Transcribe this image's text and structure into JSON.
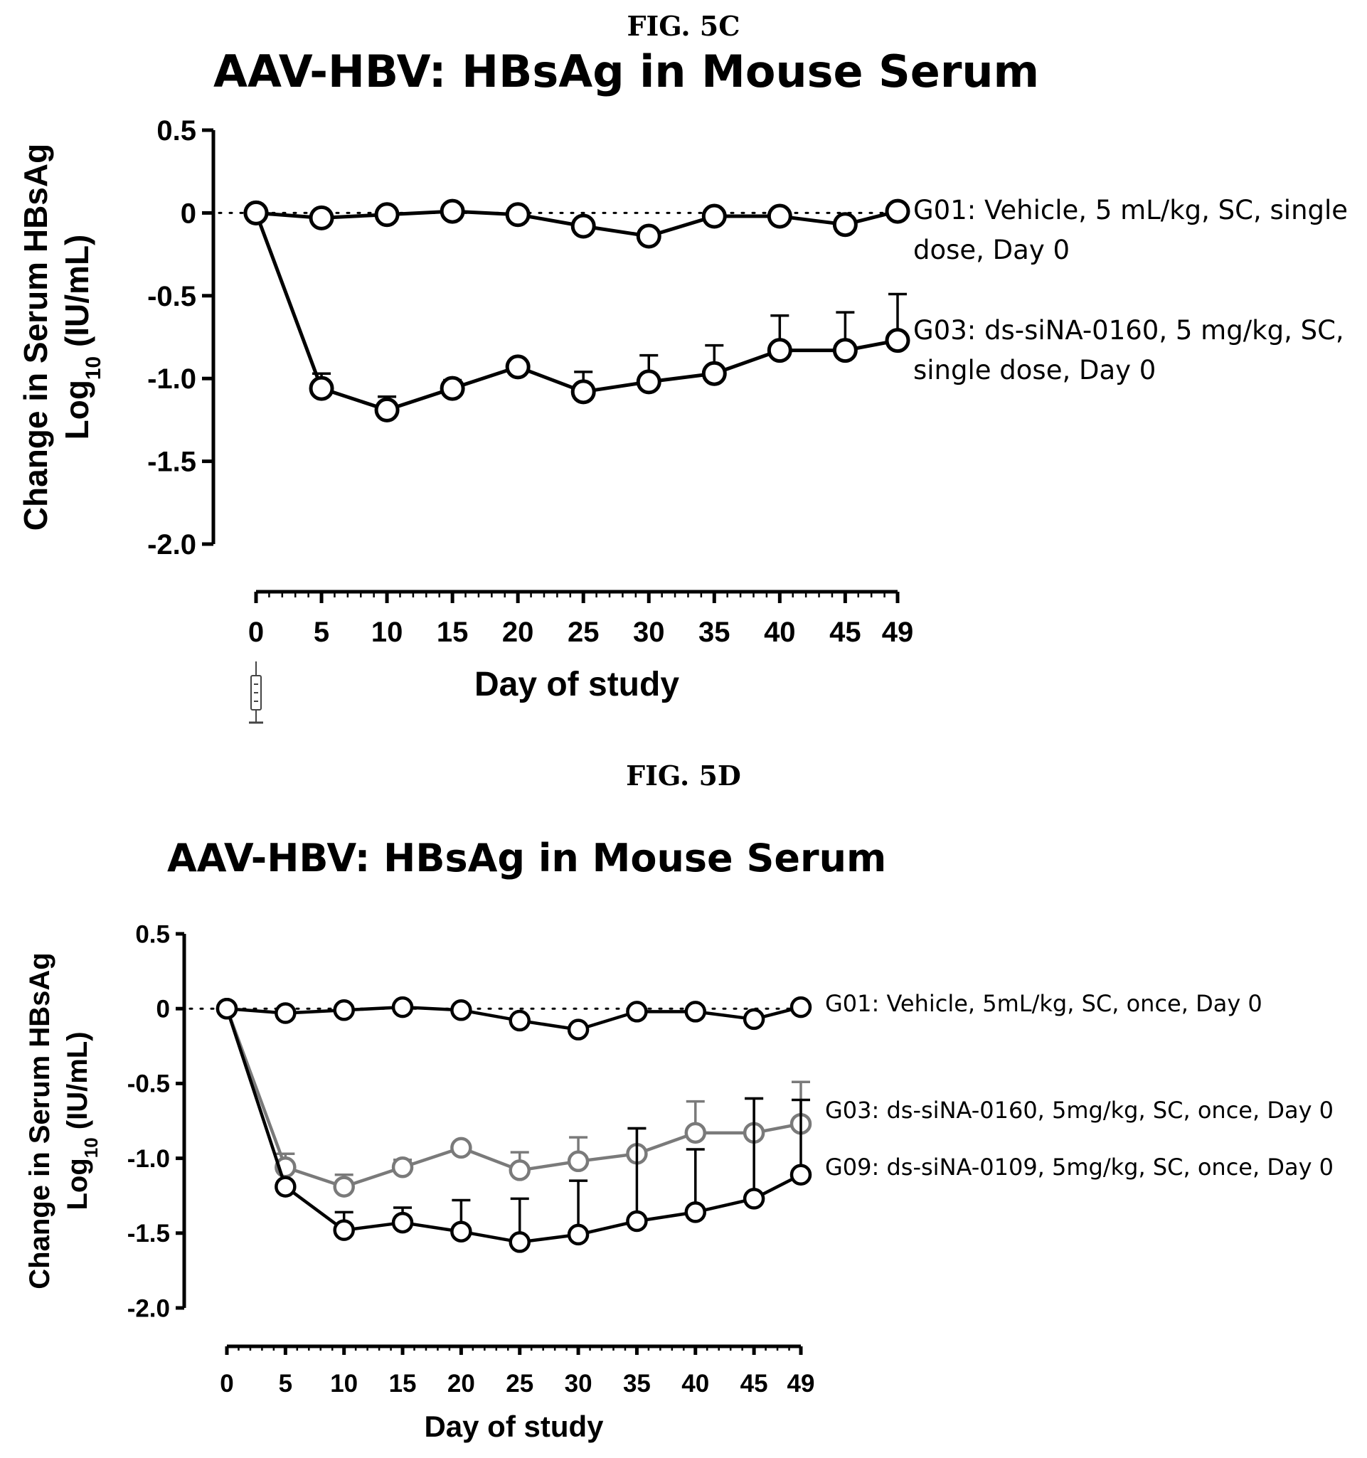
{
  "figures": [
    {
      "label": "FIG. 5C"
    },
    {
      "label": "FIG. 5D"
    }
  ],
  "chart_data": [
    {
      "type": "line",
      "title": "AAV-HBV: HBsAg in Mouse Serum",
      "xlabel": "Day of study",
      "ylabel_line1": "Change in Serum HBsAg",
      "ylabel_line2_prefix": "Log",
      "ylabel_line2_sub": "10",
      "ylabel_line2_suffix": " (IU/mL)",
      "xlim": [
        0,
        49
      ],
      "ylim": [
        -2.0,
        0.5
      ],
      "x_ticks": [
        0,
        5,
        10,
        15,
        20,
        25,
        30,
        35,
        40,
        45,
        49
      ],
      "x_tick_labels": [
        "0",
        "5",
        "10",
        "15",
        "20",
        "25",
        "30",
        "35",
        "40",
        "45",
        "49"
      ],
      "y_ticks": [
        0.5,
        0,
        -0.5,
        -1.0,
        -1.5,
        -2.0
      ],
      "y_tick_labels": [
        "0.5",
        "0",
        "-0.5",
        "-1.0",
        "-1.5",
        "-2.0"
      ],
      "reference_line": {
        "y": 0,
        "style": "dotted"
      },
      "dosing_marker": {
        "day": 0,
        "icon": "syringe-icon"
      },
      "x": [
        0,
        5,
        10,
        15,
        20,
        25,
        30,
        35,
        40,
        45,
        49
      ],
      "series": [
        {
          "legend_lines": [
            "G01: Vehicle, 5 mL/kg, SC, single",
            "dose, Day 0"
          ],
          "color": "#000000",
          "values": [
            0,
            -0.03,
            -0.01,
            0.01,
            -0.01,
            -0.08,
            -0.14,
            -0.02,
            -0.02,
            -0.07,
            0.01
          ],
          "errors": [
            0,
            0,
            0,
            0,
            0,
            0,
            0,
            0,
            0,
            0,
            0
          ]
        },
        {
          "legend_lines": [
            "G03: ds-siNA-0160, 5 mg/kg, SC,",
            "single dose, Day 0"
          ],
          "color": "#000000",
          "values": [
            0,
            -1.06,
            -1.19,
            -1.06,
            -0.93,
            -1.08,
            -1.02,
            -0.97,
            -0.83,
            -0.83,
            -0.77
          ],
          "errors": [
            0,
            0.09,
            0.08,
            0.05,
            0,
            0.12,
            0.16,
            0.17,
            0.21,
            0.23,
            0.28
          ]
        }
      ]
    },
    {
      "type": "line",
      "title": "AAV-HBV: HBsAg in Mouse Serum",
      "xlabel": "Day of study",
      "ylabel_line1": "Change in Serum HBsAg",
      "ylabel_line2_prefix": "Log",
      "ylabel_line2_sub": "10",
      "ylabel_line2_suffix": " (IU/mL)",
      "xlim": [
        0,
        49
      ],
      "ylim": [
        -2.0,
        0.5
      ],
      "x_ticks": [
        0,
        5,
        10,
        15,
        20,
        25,
        30,
        35,
        40,
        45,
        49
      ],
      "x_tick_labels": [
        "0",
        "5",
        "10",
        "15",
        "20",
        "25",
        "30",
        "35",
        "40",
        "45",
        "49"
      ],
      "y_ticks": [
        0.5,
        0,
        -0.5,
        -1.0,
        -1.5,
        -2.0
      ],
      "y_tick_labels": [
        "0.5",
        "0",
        "-0.5",
        "-1.0",
        "-1.5",
        "-2.0"
      ],
      "reference_line": {
        "y": 0,
        "style": "dotted"
      },
      "x": [
        0,
        5,
        10,
        15,
        20,
        25,
        30,
        35,
        40,
        45,
        49
      ],
      "series": [
        {
          "legend_lines": [
            "G01: Vehicle, 5mL/kg, SC, once, Day 0"
          ],
          "color": "#000000",
          "values": [
            0,
            -0.03,
            -0.01,
            0.01,
            -0.01,
            -0.08,
            -0.14,
            -0.02,
            -0.02,
            -0.07,
            0.01
          ],
          "errors": [
            0,
            0,
            0,
            0,
            0,
            0,
            0,
            0,
            0,
            0,
            0
          ]
        },
        {
          "legend_lines": [
            "G03: ds-siNA-0160, 5mg/kg, SC, once, Day 0"
          ],
          "color": "#7a7a7a",
          "values": [
            0,
            -1.06,
            -1.19,
            -1.06,
            -0.93,
            -1.08,
            -1.02,
            -0.97,
            -0.83,
            -0.83,
            -0.77
          ],
          "errors": [
            0,
            0.09,
            0.08,
            0.05,
            0,
            0.12,
            0.16,
            0.17,
            0.21,
            0.23,
            0.28
          ]
        },
        {
          "legend_lines": [
            "G09: ds-siNA-0109, 5mg/kg, SC, once, Day 0"
          ],
          "color": "#000000",
          "values": [
            0,
            -1.19,
            -1.48,
            -1.43,
            -1.49,
            -1.56,
            -1.51,
            -1.42,
            -1.36,
            -1.27,
            -1.11
          ],
          "errors": [
            0,
            0,
            0.12,
            0.1,
            0.21,
            0.29,
            0.36,
            0.62,
            0.42,
            0.67,
            0.5
          ]
        }
      ]
    }
  ]
}
